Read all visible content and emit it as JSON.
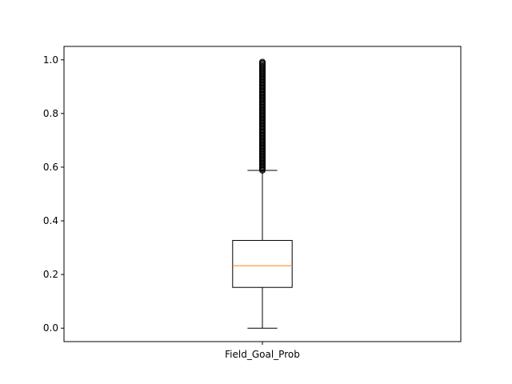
{
  "chart_data": {
    "type": "box",
    "title": "",
    "xlabel": "",
    "ylabel": "",
    "categories": [
      "Field_Goal_Prob"
    ],
    "ylim": [
      -0.05,
      1.05
    ],
    "yticks": [
      0.0,
      0.2,
      0.4,
      0.6,
      0.8,
      1.0
    ],
    "ytick_labels": [
      "0.0",
      "0.2",
      "0.4",
      "0.6",
      "0.8",
      "1.0"
    ],
    "grid": false,
    "boxes": [
      {
        "name": "Field_Goal_Prob",
        "whisker_low": 0.0,
        "q1": 0.152,
        "median": 0.233,
        "q3": 0.327,
        "whisker_high": 0.588,
        "outliers_range": [
          0.588,
          0.995
        ]
      }
    ],
    "colors": {
      "box": "#000000",
      "median": "#ff7f0e",
      "fliers": "#000000"
    }
  }
}
